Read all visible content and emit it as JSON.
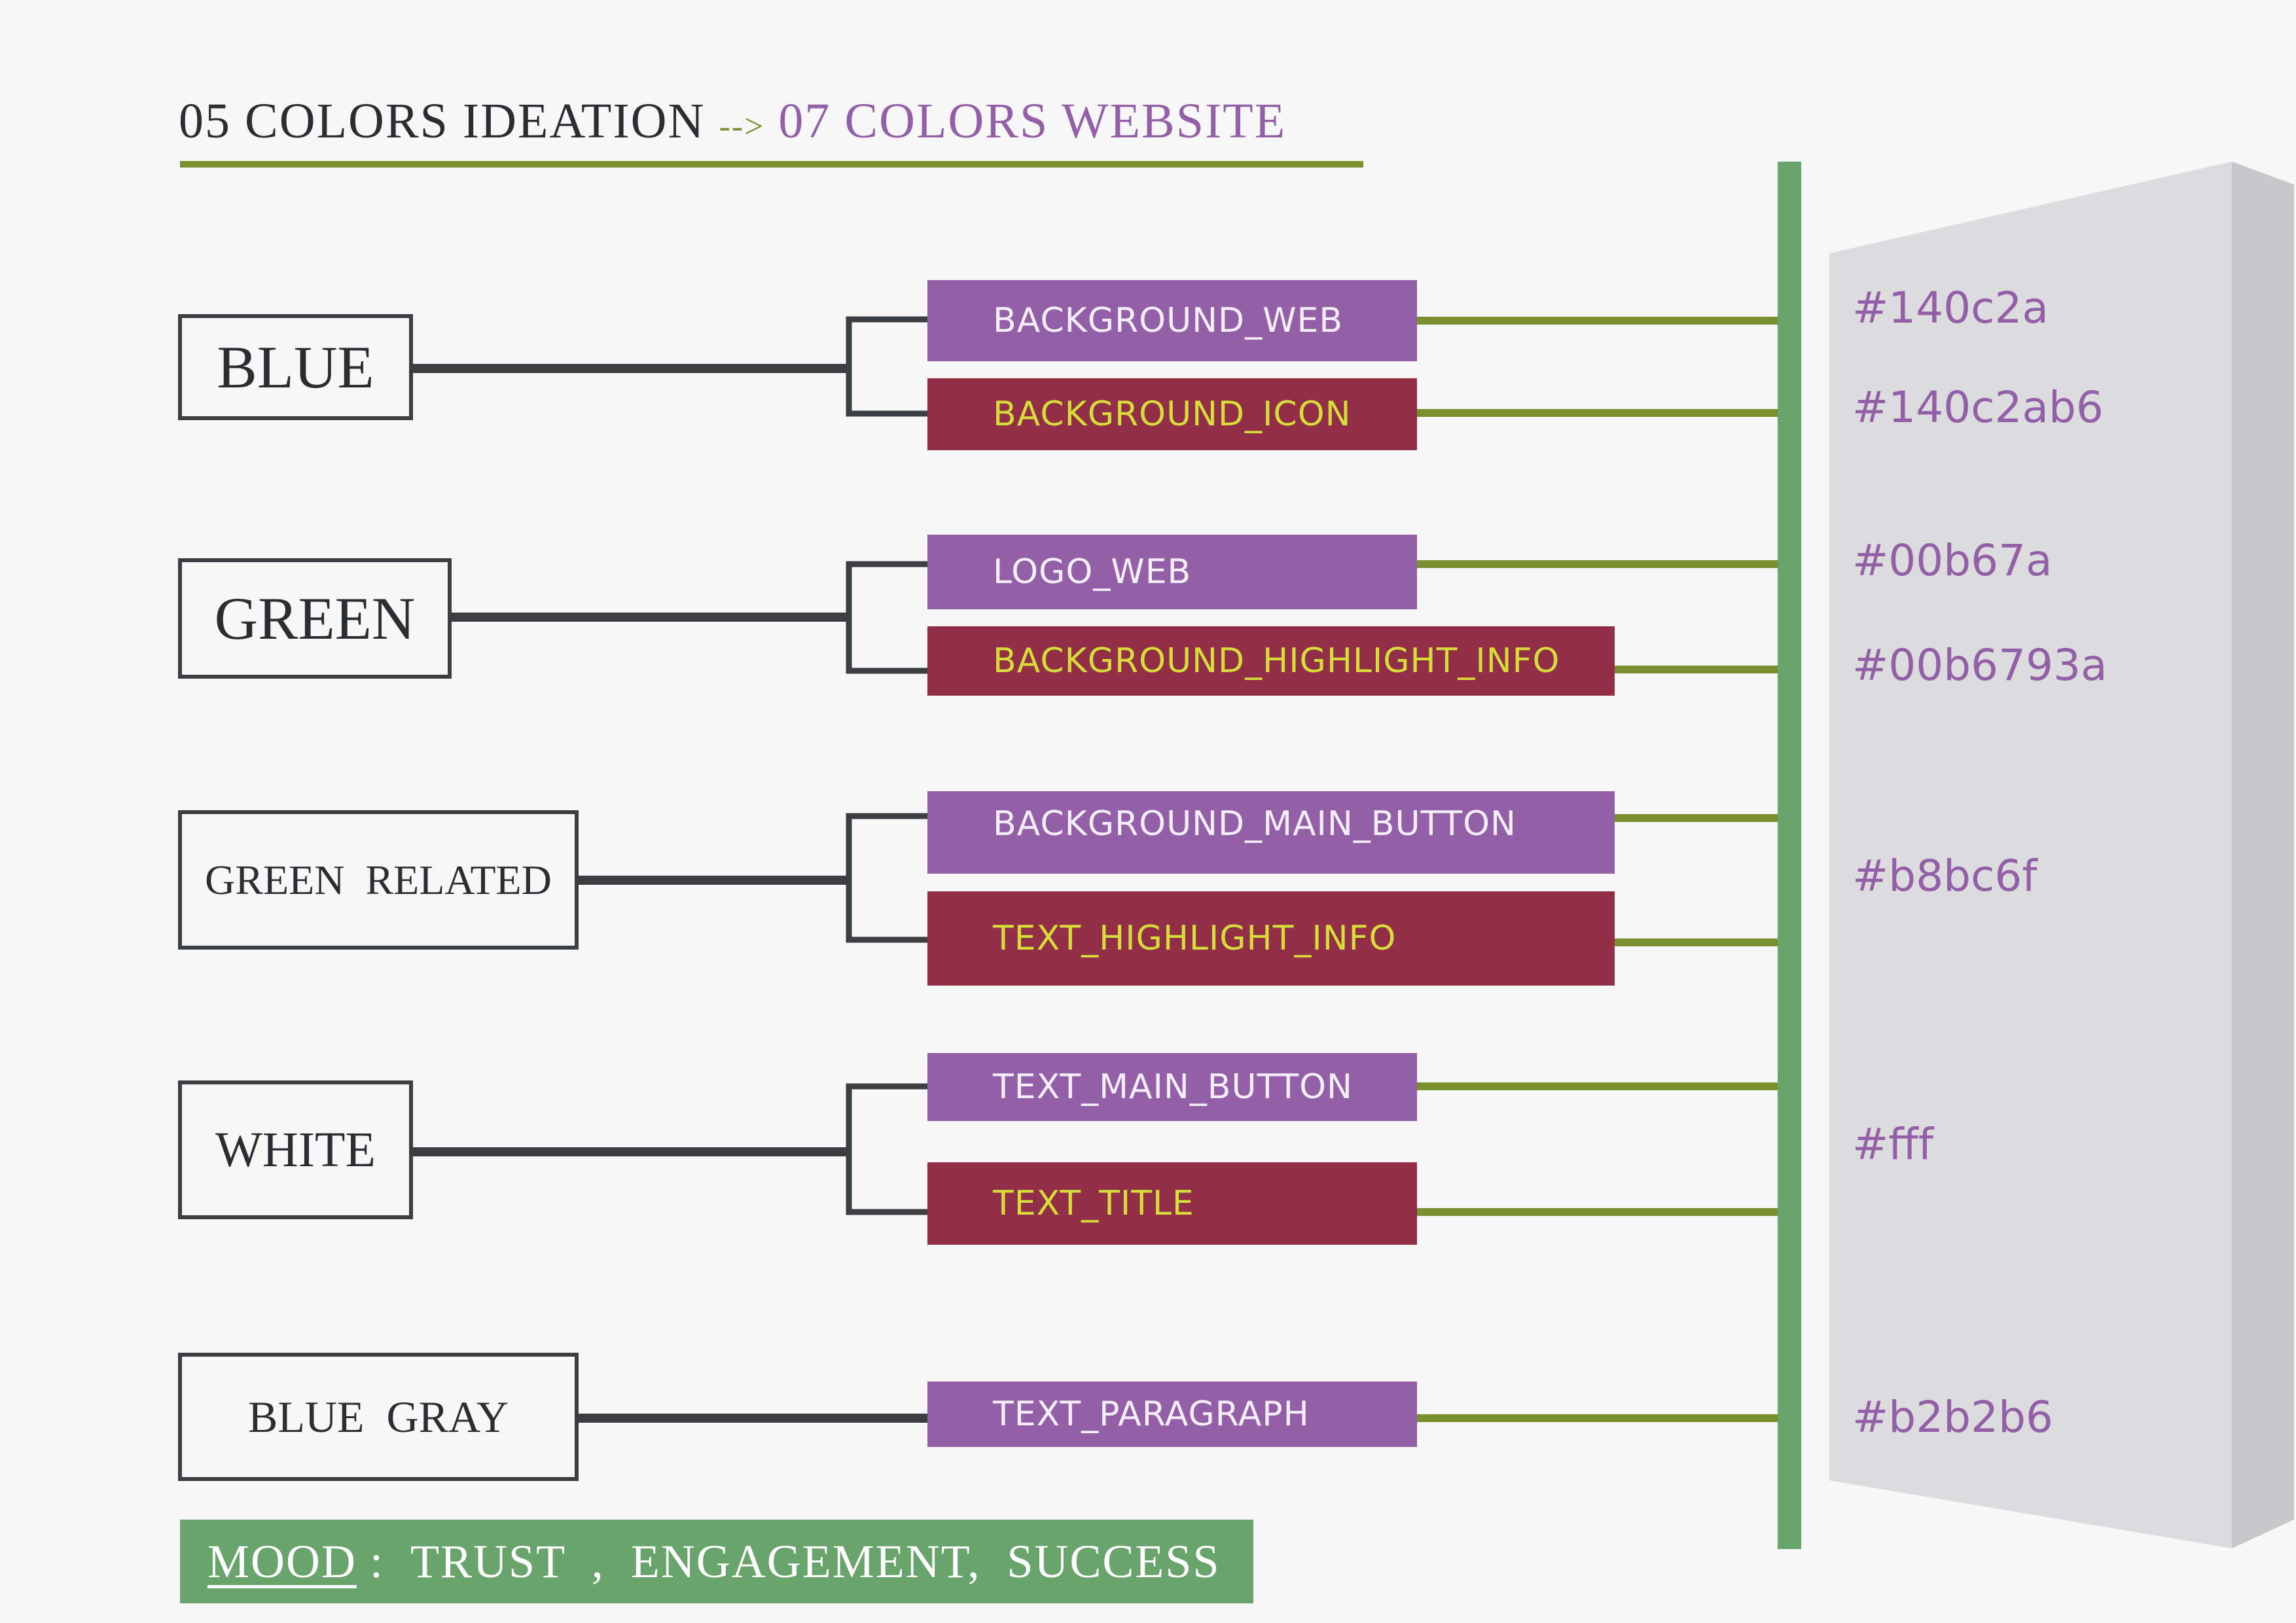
{
  "title": {
    "part1": "05  COLORS  IDEATION",
    "arrow": "-->",
    "part2": "07  COLORS  WEBSITE"
  },
  "groups": [
    {
      "label": "BLUE"
    },
    {
      "label": "GREEN"
    },
    {
      "label": "GREEN  RELATED"
    },
    {
      "label": "WHITE"
    },
    {
      "label": "BLUE  GRAY"
    }
  ],
  "roles": [
    {
      "label": "BACKGROUND_WEB"
    },
    {
      "label": "BACKGROUND_ICON"
    },
    {
      "label": "LOGO_WEB"
    },
    {
      "label": "BACKGROUND_HIGHLIGHT_INFO"
    },
    {
      "label": "BACKGROUND_MAIN_BUTTON"
    },
    {
      "label": "TEXT_HIGHLIGHT_INFO"
    },
    {
      "label": "TEXT_MAIN_BUTTON"
    },
    {
      "label": "TEXT_TITLE"
    },
    {
      "label": "TEXT_PARAGRAPH"
    }
  ],
  "hex_values": [
    {
      "value": "#140c2a"
    },
    {
      "value": "#140c2ab6"
    },
    {
      "value": "#00b67a"
    },
    {
      "value": "#00b6793a"
    },
    {
      "value": "#b8bc6f"
    },
    {
      "value": "#fff"
    },
    {
      "value": "#b2b2b6"
    }
  ],
  "mood": {
    "label": "MOOD",
    "separator": " :  ",
    "text": "TRUST  ,  ENGAGEMENT,  SUCCESS"
  },
  "colors": {
    "background": "#f7f7f7",
    "purple": "#9360a8",
    "maroon": "#922e45",
    "olive_line": "#7a8f2e",
    "green_bar": "#68a46c",
    "dark_line": "#3b3f42",
    "panel": "#dcdbde"
  }
}
